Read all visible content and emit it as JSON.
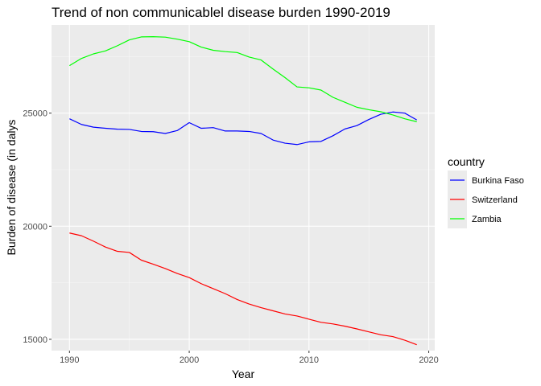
{
  "chart_data": {
    "type": "line",
    "title": "Trend of non communicablel disease burden 1990-2019",
    "xlabel": "Year",
    "ylabel": "Burden of disease (in dalys",
    "xlim": [
      1988.5,
      2020.5
    ],
    "ylim": [
      14500,
      28900
    ],
    "x_ticks": [
      1990,
      2000,
      2010,
      2020
    ],
    "y_ticks": [
      15000,
      20000,
      25000
    ],
    "grid": true,
    "legend": {
      "title": "country",
      "placement": "right"
    },
    "x": [
      1990,
      1991,
      1992,
      1993,
      1994,
      1995,
      1996,
      1997,
      1998,
      1999,
      2000,
      2001,
      2002,
      2003,
      2004,
      2005,
      2006,
      2007,
      2008,
      2009,
      2010,
      2011,
      2012,
      2013,
      2014,
      2015,
      2016,
      2017,
      2018,
      2019
    ],
    "series": [
      {
        "name": "Burkina Faso",
        "color": "#0000ff",
        "values": [
          24750,
          24500,
          24380,
          24330,
          24290,
          24280,
          24190,
          24180,
          24100,
          24230,
          24580,
          24330,
          24360,
          24210,
          24210,
          24190,
          24100,
          23810,
          23670,
          23610,
          23730,
          23750,
          24000,
          24300,
          24450,
          24720,
          24950,
          25050,
          25000,
          24700
        ]
      },
      {
        "name": "Switzerland",
        "color": "#ff0000",
        "values": [
          19700,
          19580,
          19340,
          19080,
          18890,
          18840,
          18500,
          18320,
          18130,
          17910,
          17730,
          17460,
          17240,
          17020,
          16760,
          16560,
          16400,
          16260,
          16120,
          16030,
          15890,
          15750,
          15680,
          15580,
          15460,
          15330,
          15200,
          15120,
          14960,
          14760
        ]
      },
      {
        "name": "Zambia",
        "color": "#00ff00",
        "values": [
          27100,
          27420,
          27620,
          27750,
          27980,
          28240,
          28370,
          28380,
          28360,
          28270,
          28160,
          27920,
          27780,
          27720,
          27680,
          27480,
          27350,
          26950,
          26570,
          26160,
          26120,
          26020,
          25700,
          25480,
          25260,
          25150,
          25060,
          24920,
          24750,
          24620
        ]
      }
    ]
  }
}
